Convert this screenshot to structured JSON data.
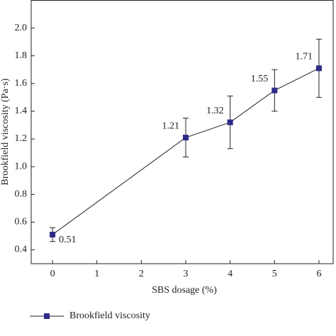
{
  "chart_data": {
    "type": "line",
    "y_label": "Brookfield viscosity (Pa·s)",
    "x_label": "SBS dosage (%)",
    "x": [
      0,
      3,
      4,
      5,
      6
    ],
    "series": [
      {
        "name": "Brookfield viscosity",
        "color": "#2e2a8a",
        "values": [
          0.51,
          1.21,
          1.32,
          1.55,
          1.71
        ],
        "errors": [
          0.05,
          0.14,
          0.19,
          0.15,
          0.21
        ]
      }
    ],
    "xlim": [
      -0.48,
      6.32
    ],
    "ylim": [
      0.3,
      2.2
    ],
    "xticks": [
      0,
      1,
      2,
      3,
      4,
      5,
      6
    ],
    "yticks": [
      {
        "value": 0.4,
        "label": "0.4"
      },
      {
        "value": 0.6,
        "label": "0.6"
      },
      {
        "value": 0.8,
        "label": "0.8"
      },
      {
        "value": 1.0,
        "label": "1.0"
      },
      {
        "value": 1.2,
        "label": "1.2"
      },
      {
        "value": 1.4,
        "label": "1.4"
      },
      {
        "value": 1.6,
        "label": "1.6"
      },
      {
        "value": 1.8,
        "label": "1.8"
      },
      {
        "value": 2.0,
        "label": "2.0"
      }
    ],
    "legend": "bottom-left"
  }
}
